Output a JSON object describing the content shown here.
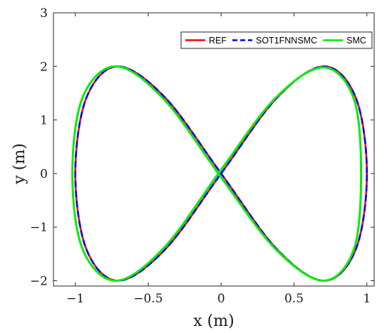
{
  "chart_data": {
    "type": "line",
    "title": "",
    "xlabel": "x (m)",
    "ylabel": "y (m)",
    "xlim": [
      -1.15,
      1.05
    ],
    "ylim": [
      -2.1,
      3
    ],
    "xticks": [
      -1,
      -0.5,
      0,
      0.5,
      1
    ],
    "xtick_labels": [
      "−1",
      "−0.5",
      "0",
      "0.5",
      "1"
    ],
    "yticks": [
      -2,
      -1,
      0,
      1,
      2,
      3
    ],
    "ytick_labels": [
      "−2",
      "−1",
      "0",
      "1",
      "2",
      "3"
    ],
    "grid": false,
    "legend_position": "top-right",
    "series": [
      {
        "name": "REF",
        "color": "#ff0000",
        "style": "solid",
        "x": [
          1.0,
          0.924,
          0.707,
          0.383,
          0.0,
          -0.383,
          -0.707,
          -0.924,
          -1.0,
          -0.924,
          -0.707,
          -0.383,
          0.0,
          0.383,
          0.707,
          0.924,
          1.0
        ],
        "y": [
          0.0,
          1.414,
          2.0,
          1.414,
          0.0,
          -1.414,
          -2.0,
          -1.414,
          0.0,
          1.414,
          2.0,
          1.414,
          0.0,
          -1.414,
          -2.0,
          -1.414,
          0.0
        ]
      },
      {
        "name": "SOT1FNNSMC",
        "color": "#0000ff",
        "style": "dashed",
        "x": [
          1.0,
          0.924,
          0.707,
          0.383,
          0.0,
          -0.383,
          -0.707,
          -0.924,
          -1.0,
          -0.924,
          -0.707,
          -0.383,
          0.0,
          0.383,
          0.707,
          0.924,
          1.0
        ],
        "y": [
          0.0,
          1.414,
          2.0,
          1.414,
          0.0,
          -1.414,
          -2.0,
          -1.414,
          0.0,
          1.414,
          2.0,
          1.414,
          0.0,
          -1.414,
          -2.0,
          -1.414,
          0.0
        ]
      },
      {
        "name": "SMC",
        "color": "#00ee00",
        "style": "solid",
        "x": [
          0.96,
          0.91,
          0.7,
          0.37,
          0.0,
          -0.39,
          -0.72,
          -0.95,
          -1.02,
          -0.95,
          -0.72,
          -0.39,
          0.0,
          0.37,
          0.7,
          0.91,
          0.96
        ],
        "y": [
          0.0,
          1.4,
          1.98,
          1.4,
          0.07,
          -1.38,
          -2.0,
          -1.41,
          0.0,
          1.42,
          2.0,
          1.38,
          -0.07,
          -1.4,
          -2.0,
          -1.42,
          0.0
        ]
      }
    ]
  }
}
